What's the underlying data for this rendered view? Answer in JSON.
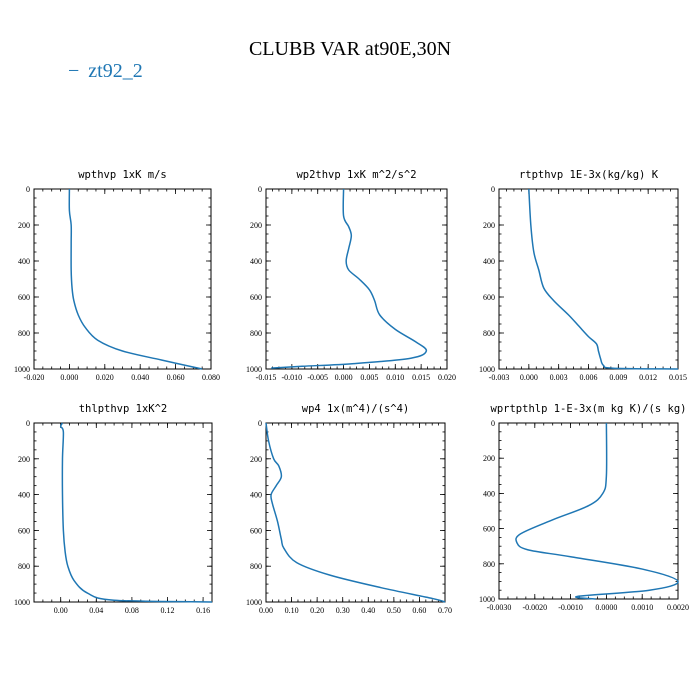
{
  "title": "CLUBB VAR at90E,30N",
  "legend": {
    "label": "zt92_2",
    "marker": "−",
    "color": "#1f77b4"
  },
  "chart_data": [
    {
      "type": "line",
      "title": "wpthvp   1xK m/s",
      "xlim": [
        -0.02,
        0.08
      ],
      "xticks": [
        "-0.020",
        "0.000",
        "0.020",
        "0.040",
        "0.060",
        "0.080"
      ],
      "ylim": [
        1000,
        0
      ],
      "yticks": [
        "0",
        "200",
        "400",
        "600",
        "800",
        "1000"
      ],
      "series": [
        {
          "x": [
            0.0,
            0.0,
            0.001,
            0.001,
            0.001,
            0.0015,
            0.0025,
            0.005,
            0.009,
            0.016,
            0.03,
            0.052,
            0.075
          ],
          "y": [
            0,
            120,
            200,
            300,
            450,
            550,
            620,
            700,
            770,
            840,
            900,
            950,
            1000
          ]
        }
      ]
    },
    {
      "type": "line",
      "title": "wp2thvp   1xK m^2/s^2",
      "xlim": [
        -0.015,
        0.02
      ],
      "xticks": [
        "-0.015",
        "-0.010",
        "-0.005",
        "0.000",
        "0.005",
        "0.010",
        "0.015",
        "0.020"
      ],
      "ylim": [
        1000,
        0
      ],
      "yticks": [
        "0",
        "200",
        "400",
        "600",
        "800",
        "1000"
      ],
      "series": [
        {
          "x": [
            0.0,
            0.0,
            0.001,
            0.0015,
            0.001,
            0.0005,
            0.001,
            0.003,
            0.005,
            0.006,
            0.007,
            0.01,
            0.014,
            0.016,
            0.013,
            0.002,
            -0.008,
            -0.014
          ],
          "y": [
            0,
            150,
            210,
            260,
            330,
            400,
            450,
            500,
            560,
            620,
            700,
            780,
            850,
            900,
            940,
            970,
            985,
            995
          ]
        }
      ]
    },
    {
      "type": "line",
      "title": "rtpthvp   1E-3x(kg/kg) K",
      "xlim": [
        -0.003,
        0.015
      ],
      "xticks": [
        "-0.003",
        "0.000",
        "0.003",
        "0.006",
        "0.009",
        "0.012",
        "0.015"
      ],
      "ylim": [
        1000,
        0
      ],
      "yticks": [
        "0",
        "200",
        "400",
        "600",
        "800",
        "1000"
      ],
      "series": [
        {
          "x": [
            0.0,
            0.0002,
            0.0005,
            0.001,
            0.0015,
            0.0025,
            0.004,
            0.005,
            0.006,
            0.0068,
            0.007,
            0.0072,
            0.0075,
            0.0085,
            0.015
          ],
          "y": [
            0,
            200,
            350,
            450,
            550,
            620,
            700,
            760,
            820,
            860,
            900,
            940,
            980,
            996,
            1000
          ]
        }
      ]
    },
    {
      "type": "line",
      "title": "thlpthvp   1xK^2",
      "xlim": [
        -0.03,
        0.17
      ],
      "xticks": [
        "0.00",
        "0.04",
        "0.08",
        "0.12",
        "0.16"
      ],
      "ylim": [
        1000,
        0
      ],
      "yticks": [
        "0",
        "200",
        "400",
        "600",
        "800",
        "1000"
      ],
      "series": [
        {
          "x": [
            0.002,
            0.0,
            0.003,
            0.002,
            0.002,
            0.003,
            0.005,
            0.008,
            0.015,
            0.03,
            0.06,
            0.17
          ],
          "y": [
            0,
            20,
            50,
            200,
            400,
            600,
            720,
            800,
            880,
            950,
            990,
            1000
          ]
        }
      ]
    },
    {
      "type": "line",
      "title": "wp4   1x(m^4)/(s^4)",
      "xlim": [
        0,
        0.7
      ],
      "xticks": [
        "0.00",
        "0.10",
        "0.20",
        "0.30",
        "0.40",
        "0.50",
        "0.60",
        "0.70"
      ],
      "ylim": [
        1000,
        0
      ],
      "yticks": [
        "0",
        "200",
        "400",
        "600",
        "800",
        "1000"
      ],
      "series": [
        {
          "x": [
            0.0,
            0.01,
            0.03,
            0.05,
            0.06,
            0.04,
            0.02,
            0.025,
            0.045,
            0.06,
            0.07,
            0.12,
            0.25,
            0.45,
            0.65,
            0.7
          ],
          "y": [
            0,
            100,
            200,
            240,
            300,
            350,
            400,
            450,
            550,
            650,
            700,
            780,
            850,
            920,
            980,
            1000
          ]
        }
      ]
    },
    {
      "type": "line",
      "title": "wprtpthlp   1-E-3x(m kg K)/(s kg)",
      "xlim": [
        -0.003,
        0.002
      ],
      "xticks": [
        "-0.0030",
        "-0.0020",
        "-0.0010",
        "0.0000",
        "0.0010",
        "0.0020"
      ],
      "ylim": [
        1000,
        0
      ],
      "yticks": [
        "0",
        "200",
        "400",
        "600",
        "800",
        "1000"
      ],
      "series": [
        {
          "x": [
            0.0,
            0.0,
            -0.0001,
            -0.0005,
            -0.0015,
            -0.0024,
            -0.0025,
            -0.0022,
            -0.001,
            0.001,
            0.002,
            0.0012,
            -0.0008,
            -0.0003
          ],
          "y": [
            0,
            300,
            400,
            470,
            550,
            630,
            680,
            720,
            760,
            830,
            900,
            950,
            985,
            1000
          ]
        }
      ]
    }
  ]
}
